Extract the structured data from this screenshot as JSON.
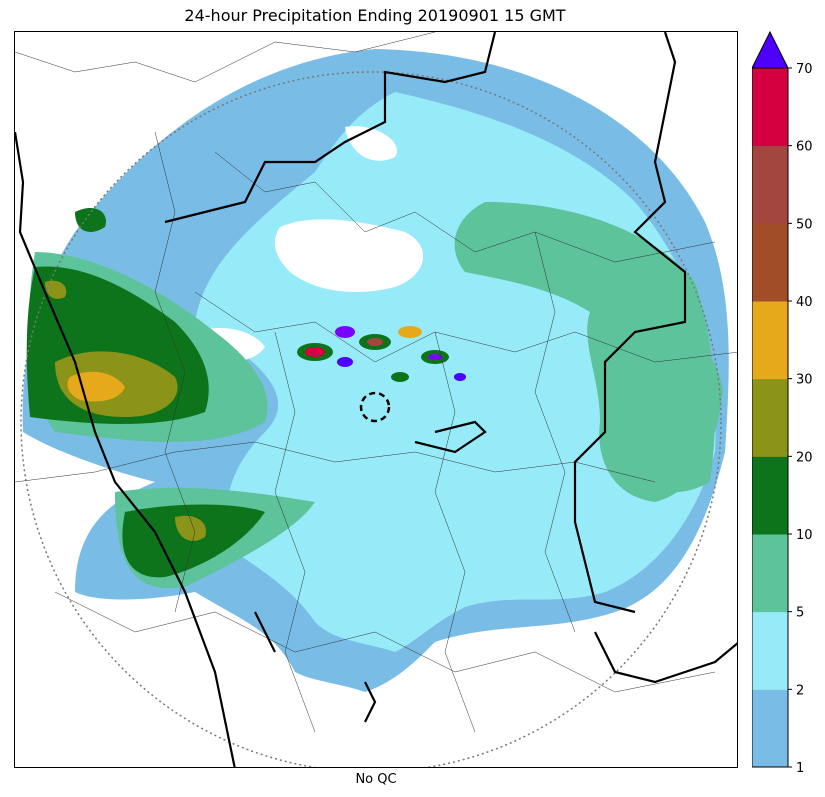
{
  "map": {
    "title": "24-hour Precipitation Ending 20190901 15 GMT",
    "xlabel": "No QC"
  },
  "colorbar": {
    "ticks": [
      "1",
      "2",
      "5",
      "10",
      "20",
      "30",
      "40",
      "50",
      "60",
      "70"
    ],
    "colors": [
      "#79bde6",
      "#97ebf9",
      "#5cc39b",
      "#0e741c",
      "#8b9318",
      "#e6a91b",
      "#a14d27",
      "#a2473f",
      "#d4003f"
    ],
    "extend_color": "#4d00ff"
  },
  "chart_data": {
    "type": "heatmap",
    "title": "24-hour Precipitation Ending 20190901 15 GMT",
    "xlabel": "No QC",
    "colorbar_levels": [
      1,
      2,
      5,
      10,
      20,
      30,
      40,
      50,
      60,
      70
    ],
    "colorbar_extend": "max"
  }
}
